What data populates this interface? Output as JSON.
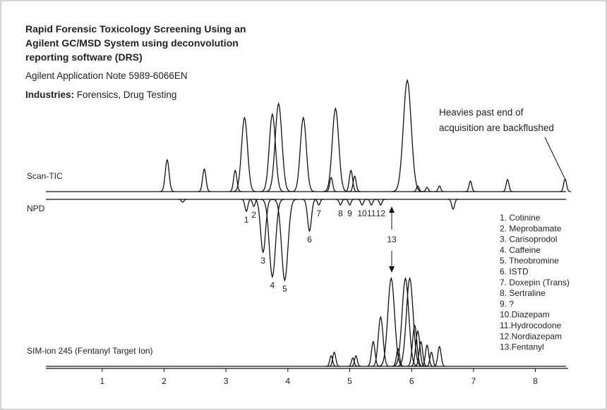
{
  "chart_data": {
    "type": "chromatogram",
    "title": [
      "Rapid Forensic Toxicology Screening Using an",
      "Agilent GC/MSD System using deconvolution",
      "reporting software (DRS)"
    ],
    "subtitle": "Agilent Application Note 5989-6066EN",
    "industries_label": "Industries:",
    "industries": "Forensics, Drug Testing",
    "annotation": [
      "Heavies past end of",
      "acquisition are backflushed"
    ],
    "callout": "13",
    "compounds": [
      "1. Cotinine",
      "2. Meprobamate",
      "3. Carisoprodol",
      "4. Caffeine",
      "5. Theobromine",
      "6. ISTD",
      "7. Doxepin (Trans)",
      "8. Sertraline",
      "9. ?",
      "10.Diazepam",
      "11.Hydrocodone",
      "12.Nordiazepam",
      "13.Fentanyl"
    ],
    "xlim": [
      0.09,
      8.53
    ],
    "xticks": [
      1,
      2,
      3,
      4,
      5,
      6,
      7,
      8
    ],
    "series": [
      {
        "name": "Scan-TIC",
        "color": "#111111",
        "x": [
          2.05,
          2.65,
          3.15,
          3.3,
          3.75,
          3.85,
          4.25,
          4.7,
          4.77,
          5.02,
          5.08,
          5.93,
          6.1,
          6.25,
          6.45,
          6.95,
          7.55,
          8.48
        ],
        "values": [
          45,
          32,
          30,
          105,
          110,
          125,
          105,
          20,
          118,
          30,
          22,
          158,
          8,
          6,
          8,
          15,
          17,
          18
        ]
      },
      {
        "name": "NPD",
        "color": "#111111",
        "x": [
          2.3,
          3.33,
          3.45,
          3.6,
          3.75,
          3.95,
          4.35,
          4.5,
          4.85,
          5.0,
          5.2,
          5.35,
          5.5,
          6.67
        ],
        "values": [
          -4,
          -17,
          -10,
          -75,
          -110,
          -115,
          -45,
          -8,
          -8,
          -8,
          -8,
          -8,
          -8,
          -14
        ],
        "labels": [
          null,
          "1",
          "2",
          "3",
          "4",
          "5",
          "6",
          "7",
          "8",
          "9",
          "10",
          "11",
          "12",
          null
        ]
      },
      {
        "name": "SIM-ion 245 (Fentanyl Target Ion)",
        "color": "#111111",
        "x": [
          4.7,
          4.75,
          5.05,
          5.1,
          5.38,
          5.5,
          5.67,
          5.78,
          5.9,
          5.97,
          6.05,
          6.1,
          6.15,
          6.25,
          6.32,
          6.45
        ],
        "values": [
          15,
          20,
          12,
          15,
          35,
          70,
          125,
          25,
          125,
          125,
          58,
          50,
          35,
          30,
          20,
          28
        ]
      }
    ]
  }
}
